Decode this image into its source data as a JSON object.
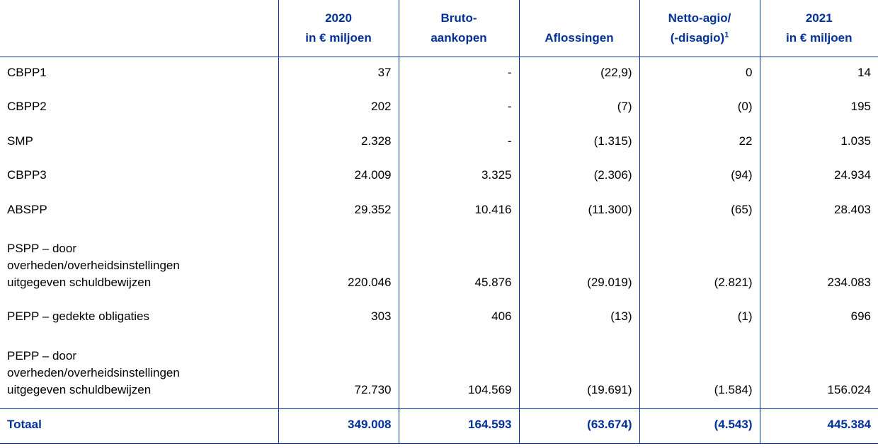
{
  "table": {
    "header": [
      {
        "lines": [
          "2020",
          "in € miljoen"
        ]
      },
      {
        "lines": [
          "Bruto-",
          "aankopen"
        ]
      },
      {
        "lines": [
          "Aflossingen"
        ]
      },
      {
        "lines": [
          "Netto-agio/",
          "(-disagio)"
        ],
        "footnote": "1"
      },
      {
        "lines": [
          "2021",
          "in € miljoen"
        ]
      }
    ],
    "rows": [
      {
        "label": [
          "CBPP1"
        ],
        "cells": [
          "37",
          "-",
          "(22,9)",
          "0",
          "14"
        ]
      },
      {
        "label": [
          "CBPP2"
        ],
        "cells": [
          "202",
          "-",
          "(7)",
          "(0)",
          "195"
        ]
      },
      {
        "label": [
          "SMP"
        ],
        "cells": [
          "2.328",
          "-",
          "(1.315)",
          "22",
          "1.035"
        ]
      },
      {
        "label": [
          "CBPP3"
        ],
        "cells": [
          "24.009",
          "3.325",
          "(2.306)",
          "(94)",
          "24.934"
        ]
      },
      {
        "label": [
          "ABSPP"
        ],
        "cells": [
          "29.352",
          "10.416",
          "(11.300)",
          "(65)",
          "28.403"
        ]
      },
      {
        "label": [
          "PSPP – door",
          "overheden/overheidsinstellingen",
          "uitgegeven schuldbewijzen"
        ],
        "cells": [
          "220.046",
          "45.876",
          "(29.019)",
          "(2.821)",
          "234.083"
        ]
      },
      {
        "label": [
          "PEPP – gedekte obligaties"
        ],
        "cells": [
          "303",
          "406",
          "(13)",
          "(1)",
          "696"
        ]
      },
      {
        "label": [
          "PEPP – door",
          "overheden/overheidsinstellingen",
          "uitgegeven schuldbewijzen"
        ],
        "cells": [
          "72.730",
          "104.569",
          "(19.691)",
          "(1.584)",
          "156.024"
        ]
      }
    ],
    "total": {
      "label": "Totaal",
      "cells": [
        "349.008",
        "164.593",
        "(63.674)",
        "(4.543)",
        "445.384"
      ]
    }
  }
}
